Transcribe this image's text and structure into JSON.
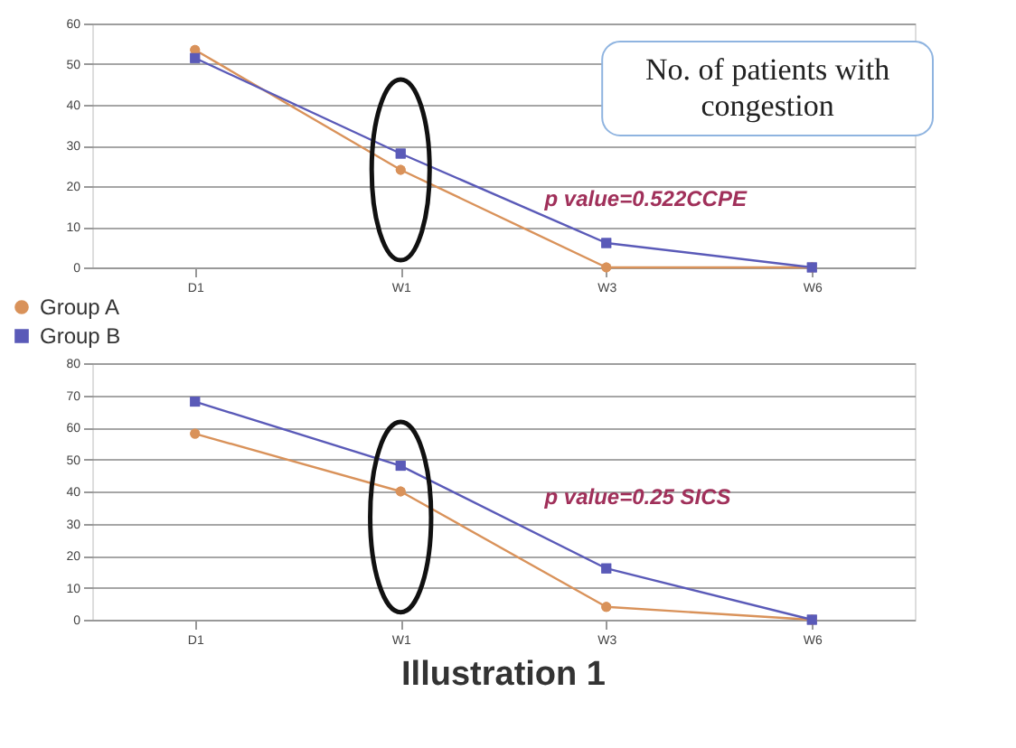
{
  "chart_data": [
    {
      "type": "line",
      "title": "No. of patients with congestion",
      "categories": [
        "D1",
        "W1",
        "W3",
        "W6"
      ],
      "ylim": [
        0,
        60
      ],
      "yticks": [
        0,
        10,
        20,
        30,
        40,
        50,
        60
      ],
      "grid": "y",
      "legend": "bottom left",
      "annotations": [
        "p value=0.522CCPE"
      ],
      "series": [
        {
          "name": "Group A",
          "color": "#d9925a",
          "marker": "circle",
          "values": [
            53.5,
            24,
            0,
            0
          ]
        },
        {
          "name": "Group B",
          "color": "#5a5ab8",
          "marker": "square",
          "values": [
            51.5,
            28,
            6,
            0
          ]
        }
      ]
    },
    {
      "type": "line",
      "categories": [
        "D1",
        "W1",
        "W3",
        "W6"
      ],
      "ylim": [
        0,
        80
      ],
      "yticks": [
        0,
        10,
        20,
        30,
        40,
        50,
        60,
        70,
        80
      ],
      "grid": "y",
      "annotations": [
        "p value=0.25 SICS",
        "Illustration 1"
      ],
      "series": [
        {
          "color": "#d9925a",
          "marker": "circle",
          "values": [
            58,
            40,
            4,
            0
          ]
        },
        {
          "color": "#5a5ab8",
          "marker": "square",
          "values": [
            68,
            48,
            16,
            0
          ]
        }
      ]
    }
  ]
}
